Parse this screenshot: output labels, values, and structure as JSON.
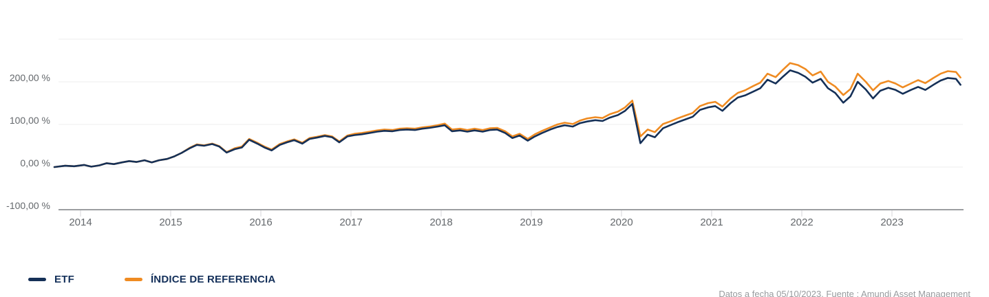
{
  "footer": {
    "source_note": "Datos a fecha 05/10/2023. Fuente : Amundi Asset Management"
  },
  "colors": {
    "background": "#ffffff",
    "gridline": "#ececec",
    "axis_line": "#9c9ea1",
    "tick_mark": "#d4d6d8",
    "axis_label": "#64686c",
    "legend_text": "#14305a",
    "source_text": "#989b9e",
    "etf_line": "#153057",
    "benchmark_line": "#EF8B22"
  },
  "chart_data": {
    "type": "line",
    "title": "",
    "grid": true,
    "legend_position": "bottom-left",
    "y_axis": {
      "unit": "%",
      "range": [
        -100,
        300
      ],
      "gridline_values": [
        300,
        200,
        100,
        0
      ],
      "tick_values": [
        200,
        100,
        0,
        -100
      ],
      "tick_labels": [
        "200,00 %",
        "100,00 %",
        "0,00 %",
        "-100,00 %"
      ]
    },
    "x_axis": {
      "range": [
        2013.71,
        2023.78
      ],
      "tick_labels": [
        "2014",
        "2015",
        "2016",
        "2017",
        "2018",
        "2019",
        "2020",
        "2021",
        "2022",
        "2023"
      ]
    },
    "x": [
      2013.71,
      2013.83,
      2013.93,
      2014.04,
      2014.12,
      2014.21,
      2014.29,
      2014.37,
      2014.46,
      2014.54,
      2014.62,
      2014.71,
      2014.79,
      2014.87,
      2014.96,
      2015.04,
      2015.12,
      2015.21,
      2015.29,
      2015.37,
      2015.46,
      2015.54,
      2015.62,
      2015.71,
      2015.79,
      2015.87,
      2015.96,
      2016.04,
      2016.12,
      2016.21,
      2016.29,
      2016.37,
      2016.46,
      2016.54,
      2016.62,
      2016.71,
      2016.79,
      2016.87,
      2016.96,
      2017.04,
      2017.12,
      2017.21,
      2017.29,
      2017.37,
      2017.46,
      2017.54,
      2017.62,
      2017.71,
      2017.79,
      2017.87,
      2017.96,
      2018.04,
      2018.12,
      2018.21,
      2018.29,
      2018.37,
      2018.46,
      2018.54,
      2018.62,
      2018.71,
      2018.79,
      2018.87,
      2018.96,
      2019.04,
      2019.12,
      2019.21,
      2019.29,
      2019.37,
      2019.46,
      2019.54,
      2019.62,
      2019.71,
      2019.79,
      2019.87,
      2019.96,
      2020.04,
      2020.12,
      2020.21,
      2020.29,
      2020.37,
      2020.46,
      2020.54,
      2020.62,
      2020.71,
      2020.79,
      2020.87,
      2020.96,
      2021.04,
      2021.12,
      2021.21,
      2021.29,
      2021.37,
      2021.46,
      2021.54,
      2021.62,
      2021.71,
      2021.79,
      2021.87,
      2021.96,
      2022.04,
      2022.12,
      2022.21,
      2022.29,
      2022.37,
      2022.46,
      2022.54,
      2022.62,
      2022.71,
      2022.79,
      2022.87,
      2022.96,
      2023.04,
      2023.12,
      2023.21,
      2023.29,
      2023.37,
      2023.46,
      2023.54,
      2023.62,
      2023.71,
      2023.76
    ],
    "series": [
      {
        "name": "ETF",
        "color": "#153057",
        "values": [
          0,
          3,
          2,
          5,
          1,
          4,
          9,
          7,
          11,
          14,
          12,
          16,
          11,
          16,
          19,
          25,
          33,
          44,
          52,
          50,
          54,
          48,
          34,
          42,
          46,
          64,
          55,
          46,
          39,
          52,
          58,
          63,
          55,
          66,
          69,
          73,
          70,
          58,
          72,
          75,
          77,
          80,
          83,
          85,
          84,
          87,
          88,
          87,
          90,
          92,
          95,
          98,
          84,
          86,
          83,
          86,
          83,
          87,
          88,
          80,
          68,
          74,
          62,
          72,
          80,
          88,
          94,
          98,
          95,
          103,
          107,
          110,
          108,
          116,
          122,
          132,
          148,
          56,
          76,
          70,
          91,
          98,
          105,
          112,
          118,
          134,
          140,
          143,
          132,
          150,
          163,
          168,
          177,
          185,
          205,
          196,
          212,
          227,
          221,
          212,
          198,
          207,
          185,
          174,
          151,
          166,
          200,
          182,
          161,
          179,
          186,
          181,
          172,
          181,
          188,
          181,
          193,
          203,
          209,
          207,
          193
        ]
      },
      {
        "name": "ÍNDICE DE REFERENCIA",
        "color": "#EF8B22",
        "values": [
          0,
          3,
          2,
          5,
          1,
          4,
          9,
          7,
          11,
          14,
          12,
          16,
          11,
          16,
          19,
          25,
          33,
          45,
          53,
          51,
          55,
          49,
          35,
          44,
          48,
          66,
          57,
          48,
          41,
          54,
          60,
          65,
          57,
          68,
          71,
          75,
          72,
          60,
          74,
          78,
          80,
          83,
          86,
          88,
          87,
          90,
          91,
          90,
          93,
          95,
          98,
          102,
          88,
          90,
          87,
          90,
          87,
          91,
          92,
          84,
          72,
          78,
          66,
          77,
          85,
          93,
          100,
          104,
          101,
          109,
          114,
          117,
          115,
          124,
          130,
          140,
          156,
          72,
          88,
          82,
          101,
          107,
          114,
          121,
          127,
          143,
          150,
          153,
          142,
          161,
          174,
          180,
          190,
          198,
          219,
          211,
          228,
          244,
          239,
          230,
          215,
          224,
          200,
          189,
          169,
          183,
          219,
          200,
          180,
          196,
          202,
          196,
          187,
          196,
          204,
          197,
          209,
          219,
          225,
          223,
          210
        ]
      }
    ]
  }
}
